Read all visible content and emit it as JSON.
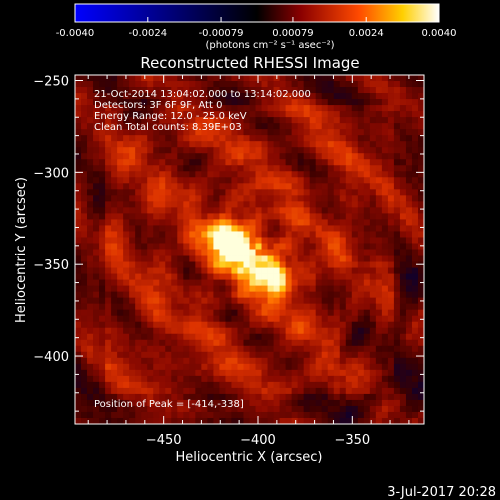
{
  "colorbar": {
    "ticks": [
      "-0.0040",
      "-0.0024",
      "-0.00079",
      "0.00079",
      "0.0024",
      "0.0040"
    ],
    "unit_label": "(photons cm⁻² s⁻¹ asec⁻²)",
    "range": [
      -0.004,
      0.004
    ],
    "colors": [
      "#0000ff",
      "#000000",
      "#8a0000",
      "#ff4a00",
      "#ffcf00",
      "#ffffff"
    ]
  },
  "chart_data": {
    "type": "heatmap",
    "title": "Reconstructed RHESSI Image",
    "xlabel": "Heliocentric X (arcsec)",
    "ylabel": "Heliocentric Y (arcsec)",
    "xlim": [
      -497,
      -312
    ],
    "ylim": [
      -437,
      -247
    ],
    "xticks": [
      -450,
      -400,
      -350
    ],
    "yticks": [
      -250,
      -300,
      -350,
      -400
    ],
    "sources": [
      {
        "x": -414,
        "y": -338,
        "peak": 1.0
      },
      {
        "x": -393,
        "y": -355,
        "peak": 0.78
      }
    ],
    "peak_position": [
      -414,
      -338
    ],
    "annotations": {
      "line1": "21-Oct-2014 13:04:02.000 to 13:14:02.000",
      "line2": "Detectors: 3F 6F 9F, Att 0",
      "line3": "Energy Range: 12.0 - 25.0 keV",
      "line4": "Clean     Total counts: 8.39E+03",
      "peak_text": "Position of Peak = [-414,-338]"
    }
  },
  "footer": {
    "timestamp": "3-Jul-2017 20:28"
  }
}
